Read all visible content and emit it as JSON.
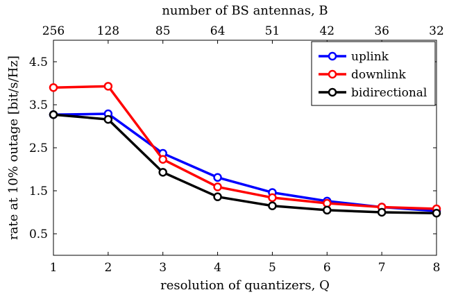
{
  "chart_data": {
    "type": "line",
    "x": [
      1,
      2,
      3,
      4,
      5,
      6,
      7,
      8
    ],
    "xticks": [
      "1",
      "2",
      "3",
      "4",
      "5",
      "6",
      "7",
      "8"
    ],
    "xlabel": "resolution of quantizers, Q",
    "top_xticks": [
      "256",
      "128",
      "85",
      "64",
      "51",
      "42",
      "36",
      "32"
    ],
    "top_xlabel": "number of BS antennas, B",
    "ylabel": "rate at 10% outage [bit/s/Hz]",
    "yticks": [
      "0.5",
      "1.5",
      "2.5",
      "3.5",
      "4.5"
    ],
    "xlim": [
      1,
      8
    ],
    "ylim": [
      0,
      5
    ],
    "grid": false,
    "legend_position": "top-right",
    "series": [
      {
        "name": "uplink",
        "color": "#0000ff",
        "values": [
          3.27,
          3.29,
          2.37,
          1.81,
          1.46,
          1.26,
          1.12,
          1.03
        ]
      },
      {
        "name": "downlink",
        "color": "#ff0000",
        "values": [
          3.9,
          3.93,
          2.23,
          1.59,
          1.34,
          1.21,
          1.12,
          1.08
        ]
      },
      {
        "name": "bidirectional",
        "color": "#000000",
        "values": [
          3.27,
          3.16,
          1.93,
          1.36,
          1.15,
          1.05,
          1.0,
          0.98
        ]
      }
    ]
  }
}
